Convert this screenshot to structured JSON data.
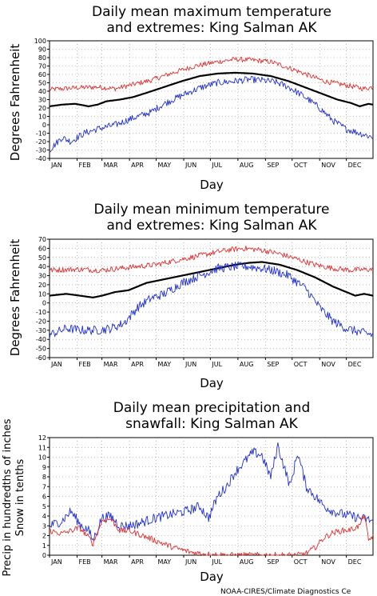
{
  "page": {
    "credit": "NOAA-CIRES/Climate Diagnostics Ce"
  },
  "chart_data": [
    {
      "type": "line",
      "title_line1": "Daily mean maximum temperature",
      "title_line2": "and extremes: King Salman AK",
      "xlabel": "Day",
      "ylabel": "Degrees Fahrenheit",
      "ylim": [
        -40,
        100
      ],
      "yticks": [
        "-40",
        "-30",
        "-20",
        "-10",
        "0",
        "10",
        "20",
        "30",
        "40",
        "50",
        "60",
        "70",
        "80",
        "90",
        "100"
      ],
      "categories": [
        "JAN",
        "FEB",
        "MAR",
        "APR",
        "MAY",
        "JUN",
        "JUL",
        "AUG",
        "SEP",
        "OCT",
        "NOV",
        "DEC"
      ],
      "grid": true,
      "series": [
        {
          "color": "#e03030",
          "noise": 3,
          "x": [
            1,
            30,
            55,
            75,
            95,
            115,
            140,
            165,
            190,
            210,
            230,
            250,
            270,
            290,
            310,
            330,
            345,
            355,
            365
          ],
          "values": [
            42,
            44,
            45,
            43,
            48,
            53,
            62,
            70,
            75,
            78,
            77,
            75,
            68,
            60,
            52,
            48,
            45,
            43,
            45
          ]
        },
        {
          "color": "#000000",
          "noise": 0,
          "x": [
            1,
            15,
            30,
            45,
            55,
            65,
            80,
            95,
            110,
            130,
            150,
            170,
            190,
            210,
            230,
            250,
            270,
            290,
            310,
            325,
            340,
            350,
            360,
            365
          ],
          "values": [
            22,
            24,
            25,
            22,
            24,
            28,
            30,
            33,
            38,
            45,
            52,
            58,
            61,
            62,
            61,
            58,
            52,
            44,
            36,
            30,
            26,
            22,
            25,
            24
          ]
        },
        {
          "color": "#2030d0",
          "noise": 4,
          "x": [
            1,
            15,
            25,
            40,
            55,
            75,
            95,
            115,
            130,
            150,
            170,
            190,
            210,
            225,
            240,
            255,
            270,
            290,
            305,
            320,
            335,
            350,
            365
          ],
          "values": [
            -30,
            -15,
            -20,
            -10,
            -5,
            0,
            8,
            15,
            25,
            35,
            44,
            50,
            52,
            54,
            53,
            51,
            45,
            32,
            20,
            5,
            -5,
            -10,
            -15
          ]
        }
      ]
    },
    {
      "type": "line",
      "title_line1": "Daily mean minimum temperature",
      "title_line2": "and extremes: King Salman AK",
      "xlabel": "Day",
      "ylabel": "Degrees Fahrenheit",
      "ylim": [
        -60,
        70
      ],
      "yticks": [
        "-60",
        "-50",
        "-40",
        "-30",
        "-20",
        "-10",
        "0",
        "10",
        "20",
        "30",
        "40",
        "50",
        "60",
        "70"
      ],
      "categories": [
        "JAN",
        "FEB",
        "MAR",
        "APR",
        "MAY",
        "JUN",
        "JUL",
        "AUG",
        "SEP",
        "OCT",
        "NOV",
        "DEC"
      ],
      "grid": true,
      "series": [
        {
          "color": "#e03030",
          "noise": 3,
          "x": [
            1,
            30,
            60,
            80,
            100,
            120,
            140,
            160,
            180,
            200,
            220,
            240,
            260,
            280,
            300,
            320,
            340,
            365
          ],
          "values": [
            36,
            37,
            36,
            38,
            40,
            42,
            46,
            50,
            54,
            58,
            60,
            58,
            54,
            48,
            42,
            38,
            36,
            37
          ]
        },
        {
          "color": "#000000",
          "noise": 0,
          "x": [
            1,
            20,
            35,
            50,
            60,
            75,
            90,
            100,
            110,
            130,
            150,
            170,
            190,
            210,
            225,
            240,
            260,
            280,
            300,
            320,
            335,
            345,
            355,
            365
          ],
          "values": [
            8,
            10,
            8,
            6,
            8,
            12,
            14,
            18,
            22,
            26,
            30,
            34,
            38,
            42,
            44,
            45,
            42,
            36,
            28,
            18,
            12,
            8,
            10,
            8
          ]
        },
        {
          "color": "#2030d0",
          "noise": 5,
          "x": [
            1,
            20,
            40,
            55,
            70,
            85,
            100,
            115,
            130,
            150,
            170,
            190,
            210,
            225,
            240,
            255,
            270,
            290,
            305,
            320,
            335,
            350,
            365
          ],
          "values": [
            -35,
            -28,
            -30,
            -30,
            -28,
            -22,
            -5,
            5,
            10,
            22,
            30,
            38,
            40,
            40,
            38,
            35,
            30,
            15,
            -5,
            -20,
            -28,
            -32,
            -35
          ]
        }
      ]
    },
    {
      "type": "line",
      "title_line1": "Daily mean precipitation and",
      "title_line2": "snawfall: King Salman AK",
      "xlabel": "Day",
      "ylabel_line1": "Precip in hundredths of inches",
      "ylabel_line2": "Snow in tenths",
      "ylim": [
        0,
        12
      ],
      "yticks": [
        "0",
        "1",
        "2",
        "3",
        "4",
        "5",
        "6",
        "7",
        "8",
        "9",
        "10",
        "11",
        "12"
      ],
      "categories": [
        "JAN",
        "FEB",
        "MAR",
        "APR",
        "MAY",
        "JUN",
        "JUL",
        "AUG",
        "SEP",
        "OCT",
        "NOV",
        "DEC"
      ],
      "grid": true,
      "series": [
        {
          "color": "#2030d0",
          "noise": 0.5,
          "x": [
            1,
            15,
            25,
            35,
            45,
            50,
            60,
            70,
            80,
            90,
            100,
            120,
            140,
            155,
            170,
            180,
            190,
            200,
            210,
            220,
            230,
            240,
            245,
            250,
            258,
            265,
            272,
            280,
            290,
            300,
            310,
            320,
            330,
            340,
            350,
            360,
            365
          ],
          "values": [
            3,
            3.5,
            4.5,
            3.2,
            2.5,
            1.5,
            3.8,
            4,
            3,
            3,
            3.2,
            3.8,
            4.2,
            4.5,
            5,
            3.8,
            6,
            7,
            8.5,
            9.5,
            10.5,
            10.2,
            9,
            8,
            11.2,
            9,
            7,
            10.5,
            7,
            6,
            5,
            4.5,
            4.2,
            4,
            3.8,
            3.6,
            3.5
          ]
        },
        {
          "color": "#e03030",
          "noise": 0.3,
          "x": [
            1,
            15,
            25,
            35,
            45,
            50,
            60,
            70,
            80,
            90,
            100,
            120,
            140,
            160,
            180,
            200,
            240,
            280,
            290,
            300,
            310,
            320,
            330,
            340,
            350,
            355,
            360,
            365
          ],
          "values": [
            2.5,
            2.2,
            2.5,
            2.8,
            1.8,
            1.2,
            3.5,
            3.7,
            2.5,
            2.5,
            2.2,
            1.5,
            0.8,
            0.3,
            0.1,
            0,
            0,
            0,
            0.2,
            0.8,
            1.8,
            2.3,
            2.5,
            2.6,
            3,
            4.2,
            1.5,
            2
          ]
        }
      ]
    }
  ]
}
